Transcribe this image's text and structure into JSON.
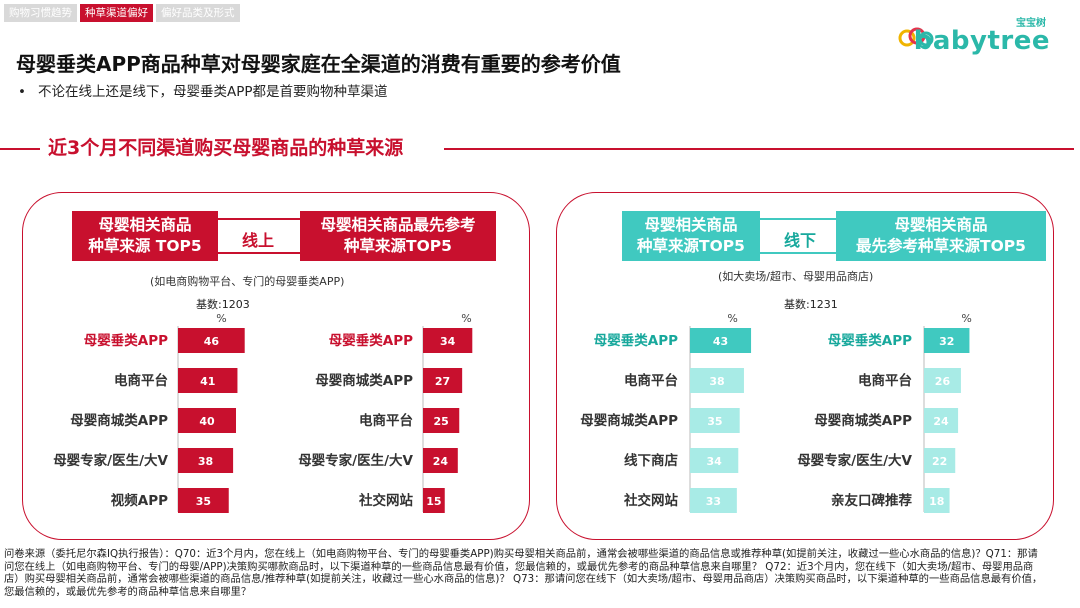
{
  "tabs": [
    {
      "label": "购物习惯趋势",
      "active": false
    },
    {
      "label": "种草渠道偏好",
      "active": true
    },
    {
      "label": "偏好品类及形式",
      "active": false
    }
  ],
  "logo": {
    "cn": "宝宝树",
    "en": "babytree"
  },
  "main_title": "母婴垂类APP商品种草对母婴家庭在全渠道的消费有重要的参考价值",
  "bullet": "不论在线上还是线下，母婴垂类APP都是首要购物种草渠道",
  "section_title": "近3个月不同渠道购买母婴商品的种草来源",
  "online": {
    "box_left": "母婴相关商品\n种草来源 TOP5",
    "middle_label": "线上",
    "box_right": "母婴相关商品最先参考\n种草来源TOP5",
    "note": "(如电商购物平台、专门的母婴垂类APP)",
    "base": "基数:1203"
  },
  "offline": {
    "box_left": "母婴相关商品\n种草来源TOP5",
    "middle_label": "线下",
    "box_right": "母婴相关商品\n最先参考种草来源TOP5",
    "note": "(如大卖场/超市、母婴用品商店)",
    "base": "基数:1231"
  },
  "colors": {
    "red": "#c8102e",
    "teal_dark": "#40c9c0",
    "teal_light": "#a8ebe6"
  },
  "chart_data": [
    {
      "type": "bar",
      "orientation": "horizontal",
      "unit": "%",
      "color": "red",
      "categories": [
        "母婴垂类APP",
        "电商平台",
        "母婴商城类APP",
        "母婴专家/医生/大V",
        "视频APP"
      ],
      "values": [
        46,
        41,
        40,
        38,
        35
      ],
      "xlim": [
        0,
        50
      ]
    },
    {
      "type": "bar",
      "orientation": "horizontal",
      "unit": "%",
      "color": "red",
      "categories": [
        "母婴垂类APP",
        "母婴商城类APP",
        "电商平台",
        "母婴专家/医生/大V",
        "社交网站"
      ],
      "values": [
        34,
        27,
        25,
        24,
        15
      ],
      "xlim": [
        0,
        50
      ]
    },
    {
      "type": "bar",
      "orientation": "horizontal",
      "unit": "%",
      "color": "teal",
      "categories": [
        "母婴垂类APP",
        "电商平台",
        "母婴商城类APP",
        "线下商店",
        "社交网站"
      ],
      "values": [
        43,
        38,
        35,
        34,
        33
      ],
      "xlim": [
        0,
        50
      ]
    },
    {
      "type": "bar",
      "orientation": "horizontal",
      "unit": "%",
      "color": "teal",
      "categories": [
        "母婴垂类APP",
        "电商平台",
        "母婴商城类APP",
        "母婴专家/医生/大V",
        "亲友口碑推荐"
      ],
      "values": [
        32,
        26,
        24,
        22,
        18
      ],
      "xlim": [
        0,
        50
      ]
    }
  ],
  "footnote": "问卷来源（委托尼尔森IQ执行报告）：Q70：近3个月内，您在线上（如电商购物平台、专门的母婴垂类APP)购买母婴相关商品前，通常会被哪些渠道的商品信息或推荐种草(如提前关注，收藏过一些心水商品的信息)？Q71：那请问您在线上（如电商购物平台、专门的母婴/APP)决策购买哪款商品时，以下渠道种草的一些商品信息最有价值，您最信赖的，或最优先参考的商品种草信息来自哪里？ Q72：近3个月内，您在线下（如大卖场/超市、母婴用品商店）购买母婴相关商品前，通常会被哪些渠道的商品信息/推荐种草(如提前关注，收藏过一些心水商品的信息)？ Q73：那请问您在线下（如大卖场/超市、母婴用品商店）决策购买商品时，以下渠道种草的一些商品信息最有价值，您最信赖的，或最优先参考的商品种草信息来自哪里？"
}
